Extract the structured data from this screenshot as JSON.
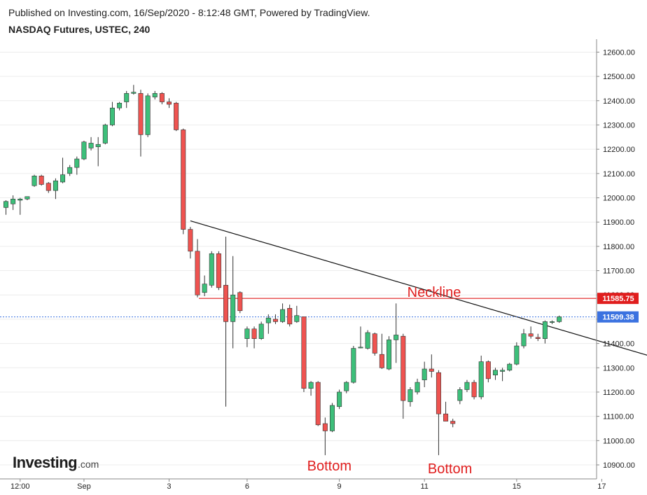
{
  "header": {
    "published": "Published on Investing.com, 16/Sep/2020 - 8:12:48 GMT, Powered by TradingView.",
    "symbol": "NASDAQ Futures, USTEC, 240"
  },
  "logo": {
    "main": "Investing",
    "domain": ".com"
  },
  "colors": {
    "up": "#3dbf7a",
    "down": "#ef5350",
    "wick": "#333333",
    "neckline": "#e01e1e",
    "lastPrice": "#3b72e0",
    "trendline": "#111111"
  },
  "chart_data": {
    "type": "candlestick",
    "title": "",
    "ylim": [
      10850,
      12660
    ],
    "y_ticks": [
      10900,
      11000,
      11100,
      11200,
      11300,
      11400,
      11500,
      11600,
      11700,
      11800,
      11900,
      12000,
      12100,
      12200,
      12300,
      12400,
      12500,
      12600
    ],
    "x_ticks": [
      {
        "label": "12:00",
        "bar": 2
      },
      {
        "label": "Sep",
        "bar": 11
      },
      {
        "label": "3",
        "bar": 23
      },
      {
        "label": "6",
        "bar": 34
      },
      {
        "label": "9",
        "bar": 47
      },
      {
        "label": "11",
        "bar": 59
      },
      {
        "label": "15",
        "bar": 72
      },
      {
        "label": "17",
        "bar": 84
      }
    ],
    "candles": [
      {
        "o": 11960,
        "h": 11990,
        "l": 11930,
        "c": 11985
      },
      {
        "o": 11975,
        "h": 12010,
        "l": 11950,
        "c": 11995
      },
      {
        "o": 11990,
        "h": 12000,
        "l": 11930,
        "c": 11995
      },
      {
        "o": 11995,
        "h": 12005,
        "l": 11990,
        "c": 12005
      },
      {
        "o": 12050,
        "h": 12095,
        "l": 12045,
        "c": 12090
      },
      {
        "o": 12090,
        "h": 12095,
        "l": 12050,
        "c": 12055
      },
      {
        "o": 12060,
        "h": 12065,
        "l": 12020,
        "c": 12030
      },
      {
        "o": 12030,
        "h": 12080,
        "l": 11995,
        "c": 12070
      },
      {
        "o": 12065,
        "h": 12165,
        "l": 12060,
        "c": 12095
      },
      {
        "o": 12100,
        "h": 12135,
        "l": 12090,
        "c": 12125
      },
      {
        "o": 12125,
        "h": 12170,
        "l": 12095,
        "c": 12160
      },
      {
        "o": 12160,
        "h": 12235,
        "l": 12155,
        "c": 12230
      },
      {
        "o": 12205,
        "h": 12250,
        "l": 12195,
        "c": 12225
      },
      {
        "o": 12210,
        "h": 12250,
        "l": 12130,
        "c": 12220
      },
      {
        "o": 12225,
        "h": 12305,
        "l": 12220,
        "c": 12300
      },
      {
        "o": 12300,
        "h": 12395,
        "l": 12295,
        "c": 12370
      },
      {
        "o": 12370,
        "h": 12395,
        "l": 12360,
        "c": 12390
      },
      {
        "o": 12395,
        "h": 12440,
        "l": 12370,
        "c": 12430
      },
      {
        "o": 12430,
        "h": 12465,
        "l": 12425,
        "c": 12435
      },
      {
        "o": 12430,
        "h": 12445,
        "l": 12170,
        "c": 12260
      },
      {
        "o": 12260,
        "h": 12430,
        "l": 12250,
        "c": 12420
      },
      {
        "o": 12415,
        "h": 12440,
        "l": 12405,
        "c": 12430
      },
      {
        "o": 12430,
        "h": 12435,
        "l": 12385,
        "c": 12395
      },
      {
        "o": 12395,
        "h": 12410,
        "l": 12370,
        "c": 12385
      },
      {
        "o": 12390,
        "h": 12395,
        "l": 12275,
        "c": 12280
      },
      {
        "o": 12280,
        "h": 12285,
        "l": 11850,
        "c": 11870
      },
      {
        "o": 11870,
        "h": 11880,
        "l": 11750,
        "c": 11780
      },
      {
        "o": 11780,
        "h": 11830,
        "l": 11590,
        "c": 11600
      },
      {
        "o": 11610,
        "h": 11680,
        "l": 11595,
        "c": 11645
      },
      {
        "o": 11640,
        "h": 11780,
        "l": 11630,
        "c": 11770
      },
      {
        "o": 11770,
        "h": 11780,
        "l": 11620,
        "c": 11630
      },
      {
        "o": 11640,
        "h": 11840,
        "l": 11140,
        "c": 11490
      },
      {
        "o": 11490,
        "h": 11760,
        "l": 11380,
        "c": 11600
      },
      {
        "o": 11610,
        "h": 11615,
        "l": 11525,
        "c": 11535
      },
      {
        "o": 11420,
        "h": 11470,
        "l": 11385,
        "c": 11460
      },
      {
        "o": 11460,
        "h": 11470,
        "l": 11380,
        "c": 11420
      },
      {
        "o": 11420,
        "h": 11490,
        "l": 11415,
        "c": 11480
      },
      {
        "o": 11485,
        "h": 11520,
        "l": 11440,
        "c": 11505
      },
      {
        "o": 11500,
        "h": 11520,
        "l": 11480,
        "c": 11490
      },
      {
        "o": 11490,
        "h": 11565,
        "l": 11485,
        "c": 11540
      },
      {
        "o": 11545,
        "h": 11560,
        "l": 11470,
        "c": 11480
      },
      {
        "o": 11490,
        "h": 11555,
        "l": 11485,
        "c": 11515
      },
      {
        "o": 11510,
        "h": 11510,
        "l": 11200,
        "c": 11215
      },
      {
        "o": 11215,
        "h": 11245,
        "l": 11185,
        "c": 11240
      },
      {
        "o": 11240,
        "h": 11245,
        "l": 11060,
        "c": 11065
      },
      {
        "o": 11070,
        "h": 11095,
        "l": 10940,
        "c": 11040
      },
      {
        "o": 11040,
        "h": 11155,
        "l": 11035,
        "c": 11145
      },
      {
        "o": 11140,
        "h": 11210,
        "l": 11130,
        "c": 11200
      },
      {
        "o": 11205,
        "h": 11245,
        "l": 11195,
        "c": 11240
      },
      {
        "o": 11240,
        "h": 11390,
        "l": 11235,
        "c": 11380
      },
      {
        "o": 11385,
        "h": 11470,
        "l": 11380,
        "c": 11385
      },
      {
        "o": 11380,
        "h": 11455,
        "l": 11375,
        "c": 11445
      },
      {
        "o": 11440,
        "h": 11445,
        "l": 11350,
        "c": 11360
      },
      {
        "o": 11355,
        "h": 11440,
        "l": 11295,
        "c": 11300
      },
      {
        "o": 11295,
        "h": 11430,
        "l": 11290,
        "c": 11415
      },
      {
        "o": 11415,
        "h": 11565,
        "l": 11320,
        "c": 11435
      },
      {
        "o": 11430,
        "h": 11440,
        "l": 11090,
        "c": 11165
      },
      {
        "o": 11160,
        "h": 11220,
        "l": 11140,
        "c": 11210
      },
      {
        "o": 11200,
        "h": 11255,
        "l": 11190,
        "c": 11240
      },
      {
        "o": 11250,
        "h": 11325,
        "l": 11220,
        "c": 11295
      },
      {
        "o": 11295,
        "h": 11355,
        "l": 11260,
        "c": 11285
      },
      {
        "o": 11280,
        "h": 11290,
        "l": 10940,
        "c": 11110
      },
      {
        "o": 11110,
        "h": 11160,
        "l": 11080,
        "c": 11080
      },
      {
        "o": 11080,
        "h": 11090,
        "l": 11055,
        "c": 11070
      },
      {
        "o": 11165,
        "h": 11220,
        "l": 11150,
        "c": 11210
      },
      {
        "o": 11210,
        "h": 11250,
        "l": 11200,
        "c": 11240
      },
      {
        "o": 11240,
        "h": 11250,
        "l": 11170,
        "c": 11180
      },
      {
        "o": 11180,
        "h": 11350,
        "l": 11170,
        "c": 11325
      },
      {
        "o": 11325,
        "h": 11330,
        "l": 11240,
        "c": 11255
      },
      {
        "o": 11270,
        "h": 11300,
        "l": 11250,
        "c": 11290
      },
      {
        "o": 11285,
        "h": 11300,
        "l": 11245,
        "c": 11290
      },
      {
        "o": 11290,
        "h": 11320,
        "l": 11285,
        "c": 11315
      },
      {
        "o": 11315,
        "h": 11405,
        "l": 11310,
        "c": 11390
      },
      {
        "o": 11390,
        "h": 11460,
        "l": 11380,
        "c": 11440
      },
      {
        "o": 11440,
        "h": 11470,
        "l": 11420,
        "c": 11430
      },
      {
        "o": 11425,
        "h": 11440,
        "l": 11410,
        "c": 11420
      },
      {
        "o": 11420,
        "h": 11495,
        "l": 11400,
        "c": 11490
      },
      {
        "o": 11490,
        "h": 11495,
        "l": 11480,
        "c": 11490
      },
      {
        "o": 11490,
        "h": 11515,
        "l": 11485,
        "c": 11510
      }
    ],
    "neckline": {
      "label": "Neckline",
      "value": 11585.75
    },
    "last_price": 11509.38,
    "price_tags": [
      "11585.75",
      "11509.38"
    ],
    "trendline": {
      "from": {
        "bar": 26,
        "price": 11905
      },
      "to": {
        "bar": 104,
        "price": 11235
      }
    },
    "annotations": [
      {
        "text": "Bottom",
        "bar": 45
      },
      {
        "text": "Bottom",
        "bar": 62
      }
    ]
  }
}
